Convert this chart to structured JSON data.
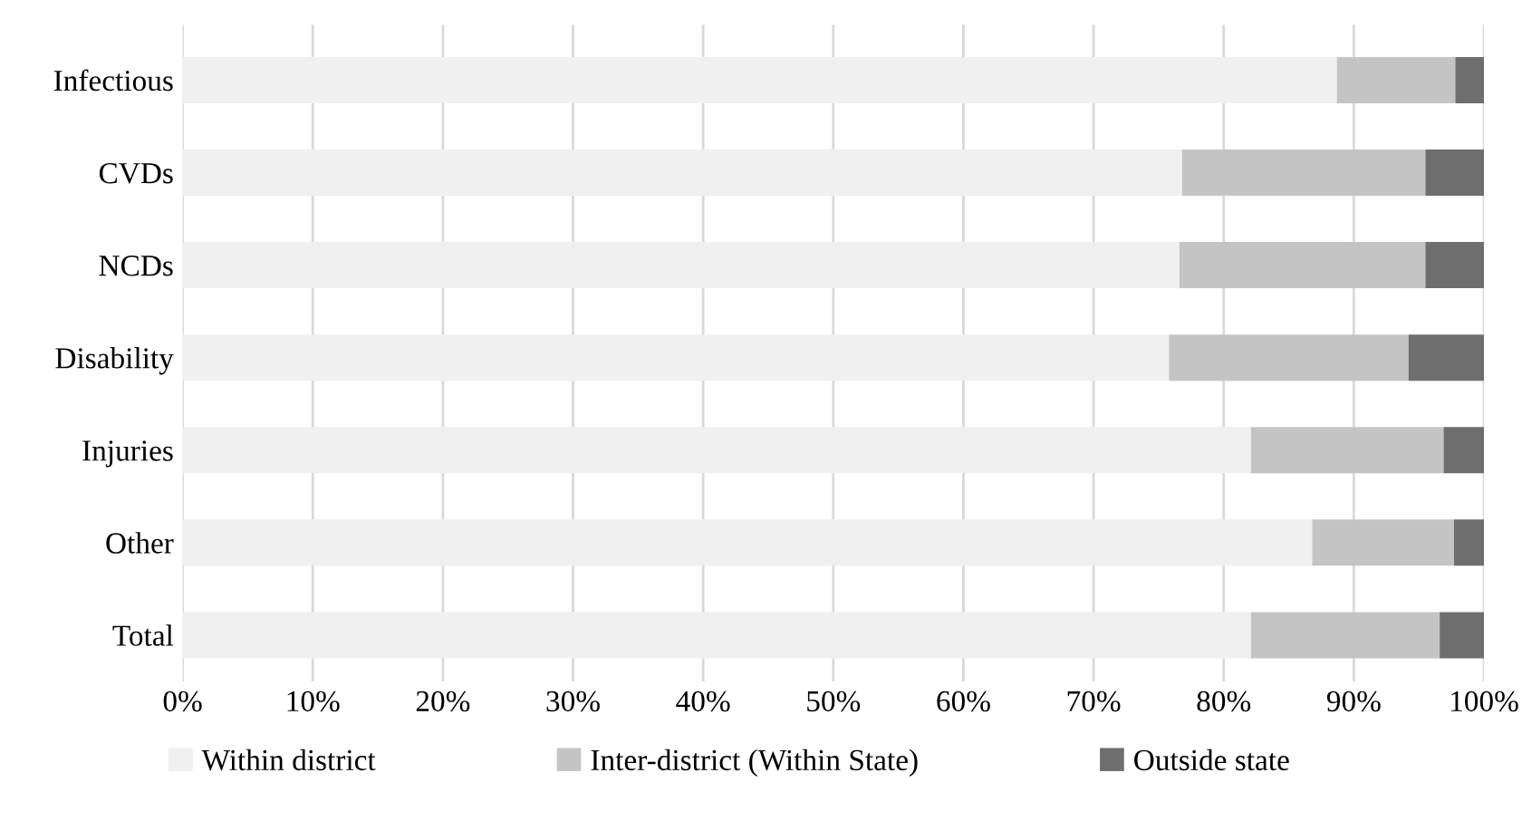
{
  "chart_data": {
    "type": "bar",
    "orientation": "horizontal",
    "stacked": true,
    "categories": [
      "Infectious",
      "CVDs",
      "NCDs",
      "Disability",
      "Injuries",
      "Other",
      "Total"
    ],
    "series": [
      {
        "name": "Within district",
        "color": "#f0f0f0",
        "values": [
          88.7,
          76.8,
          76.6,
          75.8,
          82.1,
          86.8,
          82.1
        ]
      },
      {
        "name": "Inter-district (Within State)",
        "color": "#c4c4c4",
        "values": [
          9.1,
          18.7,
          18.9,
          18.4,
          14.8,
          10.9,
          14.5
        ]
      },
      {
        "name": "Outside state",
        "color": "#6e6e6e",
        "values": [
          2.2,
          4.5,
          4.5,
          5.8,
          3.1,
          2.3,
          3.4
        ]
      }
    ],
    "xlim": [
      0,
      100
    ],
    "xticks": [
      {
        "value": 0,
        "label": "0%"
      },
      {
        "value": 10,
        "label": "10%"
      },
      {
        "value": 20,
        "label": "20%"
      },
      {
        "value": 30,
        "label": "30%"
      },
      {
        "value": 40,
        "label": "40%"
      },
      {
        "value": 50,
        "label": "50%"
      },
      {
        "value": 60,
        "label": "60%"
      },
      {
        "value": 70,
        "label": "70%"
      },
      {
        "value": 80,
        "label": "80%"
      },
      {
        "value": 90,
        "label": "90%"
      },
      {
        "value": 100,
        "label": "100%"
      }
    ],
    "grid": "x",
    "legend": "bottom"
  }
}
